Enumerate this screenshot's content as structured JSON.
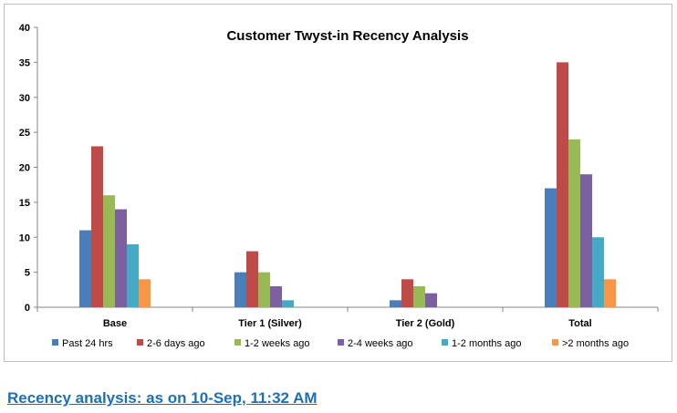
{
  "chart_data": {
    "type": "bar",
    "title": "Customer Twyst-in Recency Analysis",
    "xlabel": "",
    "ylabel": "",
    "categories": [
      "Base",
      "Tier 1 (Silver)",
      "Tier 2 (Gold)",
      "Total"
    ],
    "ylim": [
      0,
      40
    ],
    "yticks": [
      0,
      5,
      10,
      15,
      20,
      25,
      30,
      35,
      40
    ],
    "grid": false,
    "legend_position": "bottom",
    "series": [
      {
        "name": "Past 24 hrs",
        "color": "#4a7ebb",
        "values": [
          11,
          5,
          1,
          17
        ]
      },
      {
        "name": "2-6 days ago",
        "color": "#be4b48",
        "values": [
          23,
          8,
          4,
          35
        ]
      },
      {
        "name": "1-2 weeks ago",
        "color": "#98b954",
        "values": [
          16,
          5,
          3,
          24
        ]
      },
      {
        "name": "2-4 weeks ago",
        "color": "#7d60a0",
        "values": [
          14,
          3,
          2,
          19
        ]
      },
      {
        "name": "1-2 months ago",
        "color": "#46aac4",
        "values": [
          9,
          1,
          0,
          10
        ]
      },
      {
        "name": ">2 months ago",
        "color": "#f79646",
        "values": [
          4,
          0,
          0,
          4
        ]
      }
    ]
  },
  "caption": {
    "text": "Recency analysis: as on 10-Sep, 11:32 AM",
    "color": "#1f6fb2"
  }
}
